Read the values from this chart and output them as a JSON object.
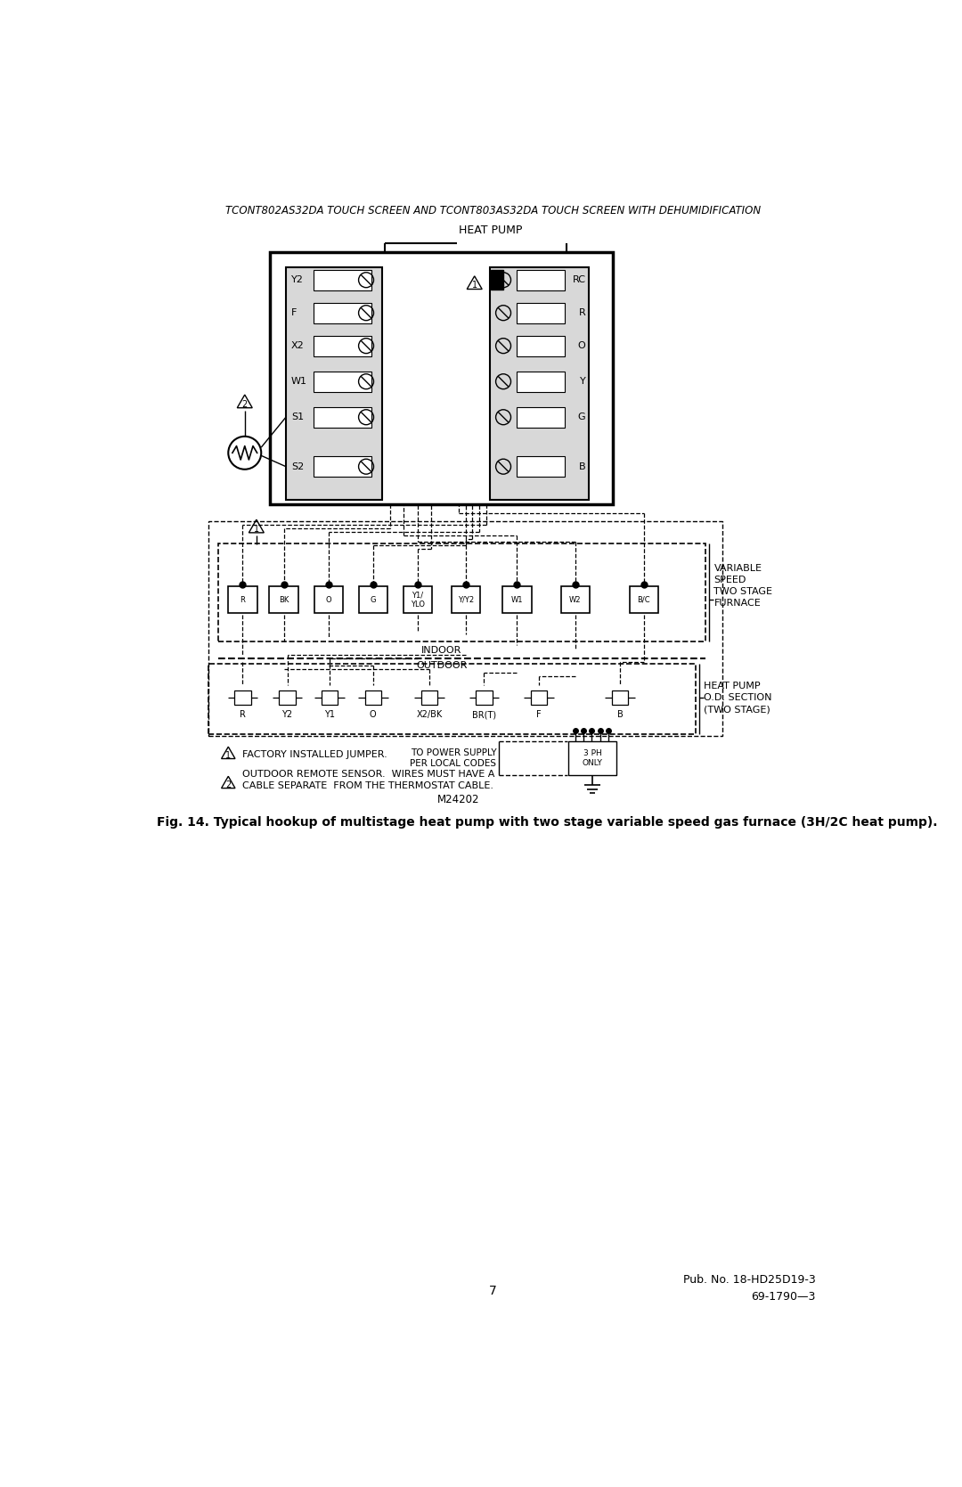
{
  "header_text": "TCONT802AS32DA TOUCH SCREEN AND TCONT803AS32DA TOUCH SCREEN WITH DEHUMIDIFICATION",
  "figure_caption": "Fig. 14. Typical hookup of multistage heat pump with two stage variable speed gas furnace (3H/2C heat pump).",
  "diagram_label": "M24202",
  "page_number": "7",
  "pub_number": "Pub. No. 18-HD25D19-3",
  "pub_code": "69-1790—3",
  "heat_pump_label": "HEAT PUMP",
  "thermostat_left_terminals": [
    "Y2",
    "F",
    "X2",
    "W1",
    "S1",
    "S2"
  ],
  "thermostat_right_terminals": [
    "RC",
    "R",
    "O",
    "Y",
    "G",
    "B"
  ],
  "furnace_terminals": [
    "R",
    "BK",
    "O",
    "G",
    "Y1/\nYLO",
    "Y/Y2",
    "W1",
    "W2",
    "B/C"
  ],
  "heat_pump_od_terminals": [
    "R",
    "Y2",
    "Y1",
    "O",
    "X2/BK",
    "BR(T)",
    "F",
    "B"
  ],
  "variable_speed_label": "VARIABLE\nSPEED\nTWO STAGE\nFURNACE",
  "heat_pump_od_label": "HEAT PUMP\nO.D. SECTION\n(TWO STAGE)",
  "factory_jumper_note": "FACTORY INSTALLED JUMPER.",
  "outdoor_sensor_note": "OUTDOOR REMOTE SENSOR.  WIRES MUST HAVE A\nCABLE SEPARATE  FROM THE THERMOSTAT CABLE.",
  "power_supply_note": "TO POWER SUPPLY\nPER LOCAL CODES",
  "three_ph_note": "3 PH\nONLY",
  "indoor_label": "INDOOR",
  "outdoor_label": "OUTDOOR",
  "bg_color": "#ffffff"
}
